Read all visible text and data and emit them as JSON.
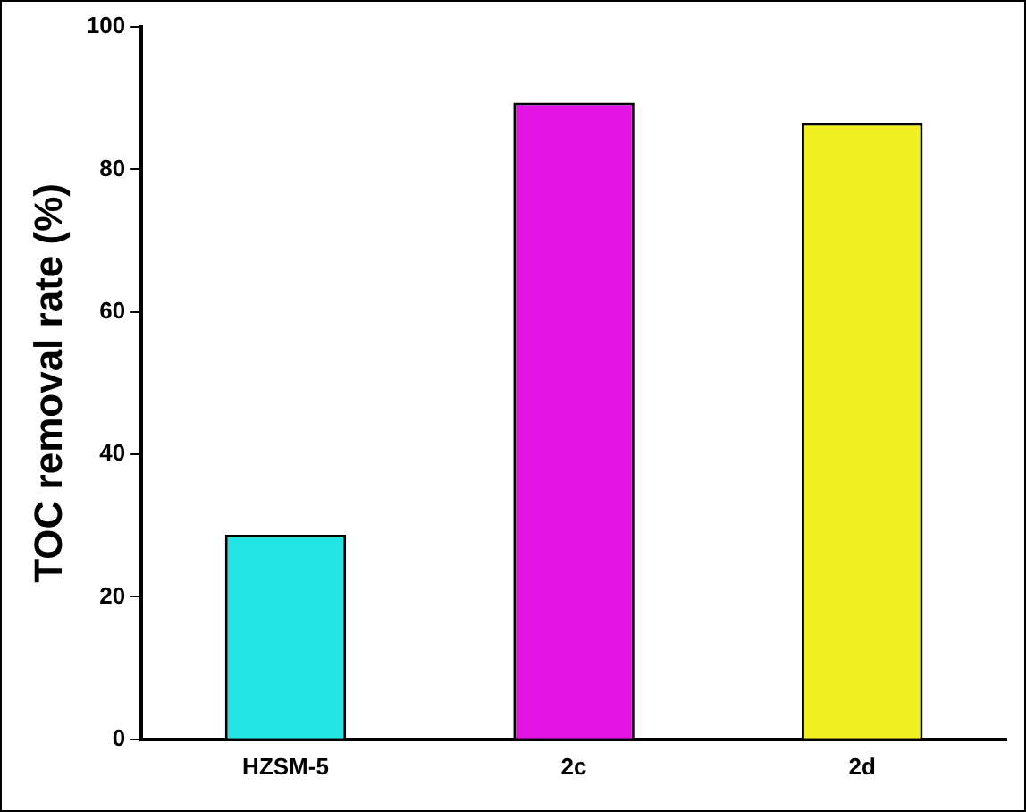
{
  "chart_data": {
    "type": "bar",
    "categories": [
      "HZSM-5",
      "2c",
      "2d"
    ],
    "values": [
      28.7,
      89.4,
      86.5
    ],
    "colors": [
      "#22e4e4",
      "#e414e4",
      "#f0f020"
    ],
    "ylabel": "TOC removal rate (%)",
    "ylim": [
      0,
      100
    ],
    "yticks": [
      0,
      20,
      40,
      60,
      80,
      100
    ],
    "grid": false,
    "legend": false
  }
}
